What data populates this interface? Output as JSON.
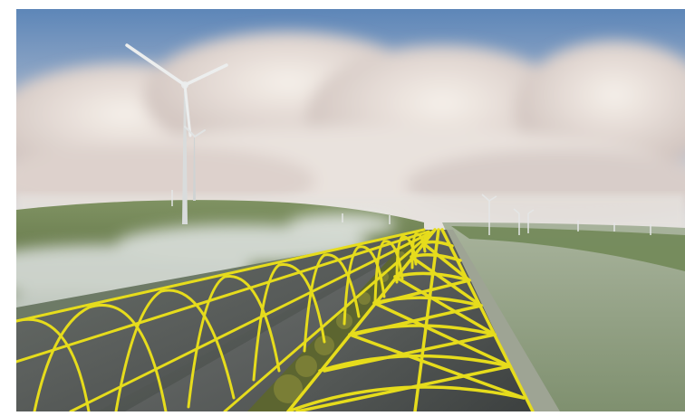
{
  "scene": {
    "subject": "rendering",
    "colors": {
      "sky_top": "#5d86b8",
      "sky_bottom": "#e8e4e0",
      "cloud": "#efe7e1",
      "cloud_shadow": "#b8aaa6",
      "hill": "#6f8452",
      "hill_dark": "#58693d",
      "water": "#8f9f86",
      "mist": "#dfe3e2",
      "roof_frame": "#e6dc1c",
      "panel": "#4b4f4f",
      "road": "#7d7f7a",
      "turbine": "#d9dcdc",
      "shrub": "#6c7331"
    }
  }
}
